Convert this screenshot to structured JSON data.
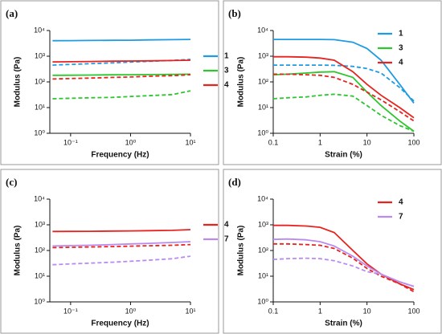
{
  "chart_data": [
    {
      "type": "line",
      "title": "(a)",
      "x_label": "Frequency (Hz)",
      "y_label": "Modulus (Pa)",
      "log_x": true,
      "log_y": true,
      "legend": "outside right",
      "x": [
        0.05,
        0.1,
        0.2,
        0.5,
        1,
        2,
        5,
        10
      ],
      "xlim": [
        0.045,
        10
      ],
      "xticks": [
        {
          "value": 0.1,
          "label": "10⁻¹"
        },
        {
          "value": 1,
          "label": "10⁰"
        },
        {
          "value": 10,
          "label": "10¹"
        }
      ],
      "ylim": [
        1,
        10000
      ],
      "yticks": [
        {
          "value": 1,
          "label": "10⁰"
        },
        {
          "value": 10,
          "label": "10¹"
        },
        {
          "value": 100,
          "label": "10²"
        },
        {
          "value": 1000,
          "label": "10³"
        },
        {
          "value": 10000,
          "label": "10⁴"
        }
      ],
      "series": [
        {
          "name": "1",
          "color": "#1f9be3",
          "values": [
            4000,
            4050,
            4100,
            4150,
            4200,
            4300,
            4400,
            4500
          ]
        },
        {
          "color": "#1f9be3",
          "dash": true,
          "values": [
            450,
            480,
            510,
            550,
            590,
            630,
            690,
            750
          ]
        },
        {
          "name": "3",
          "color": "#2ec52e",
          "values": [
            180,
            182,
            185,
            188,
            190,
            193,
            197,
            200
          ]
        },
        {
          "color": "#2ec52e",
          "dash": true,
          "values": [
            22,
            23,
            24,
            25,
            27,
            29,
            32,
            45
          ]
        },
        {
          "name": "4",
          "color": "#e8231f",
          "values": [
            600,
            610,
            620,
            640,
            650,
            660,
            680,
            700
          ]
        },
        {
          "color": "#e8231f",
          "dash": true,
          "values": [
            130,
            135,
            140,
            150,
            155,
            165,
            175,
            190
          ]
        }
      ]
    },
    {
      "type": "line",
      "title": "(b)",
      "x_label": "Strain (%)",
      "y_label": "Modulus (Pa)",
      "log_x": true,
      "log_y": true,
      "legend": "upper right",
      "x": [
        0.1,
        0.2,
        0.5,
        1,
        2,
        5,
        10,
        20,
        50,
        100
      ],
      "xlim": [
        0.1,
        100
      ],
      "xticks": [
        0.1,
        1,
        10,
        100
      ],
      "ylim": [
        1,
        10000
      ],
      "yticks": [
        {
          "value": 1,
          "label": "10⁰"
        },
        {
          "value": 10,
          "label": "10¹"
        },
        {
          "value": 100,
          "label": "10²"
        },
        {
          "value": 1000,
          "label": "10³"
        },
        {
          "value": 10000,
          "label": "10⁴"
        }
      ],
      "series": [
        {
          "name": "1",
          "color": "#1f9be3",
          "values": [
            4500,
            4500,
            4500,
            4500,
            4400,
            3500,
            2000,
            700,
            80,
            15
          ]
        },
        {
          "color": "#1f9be3",
          "dash": true,
          "values": [
            450,
            450,
            450,
            450,
            440,
            400,
            330,
            220,
            60,
            18
          ]
        },
        {
          "name": "3",
          "color": "#2ec52e",
          "values": [
            190,
            200,
            220,
            240,
            250,
            150,
            40,
            12,
            3,
            1.2
          ]
        },
        {
          "color": "#2ec52e",
          "dash": true,
          "values": [
            22,
            24,
            26,
            30,
            33,
            28,
            12,
            5,
            2,
            1.2
          ]
        },
        {
          "name": "4",
          "color": "#e8231f",
          "values": [
            950,
            950,
            920,
            850,
            700,
            250,
            80,
            30,
            10,
            4
          ]
        },
        {
          "color": "#e8231f",
          "dash": true,
          "values": [
            200,
            200,
            190,
            180,
            150,
            80,
            40,
            20,
            7,
            3
          ]
        }
      ]
    },
    {
      "type": "line",
      "title": "(c)",
      "x_label": "Frequency (Hz)",
      "y_label": "Modulus (Pa)",
      "log_x": true,
      "log_y": true,
      "legend": "outside right",
      "x": [
        0.05,
        0.1,
        0.2,
        0.5,
        1,
        2,
        5,
        10
      ],
      "xlim": [
        0.045,
        10
      ],
      "xticks": [
        {
          "value": 0.1,
          "label": "10⁻¹"
        },
        {
          "value": 1,
          "label": "10⁰"
        },
        {
          "value": 10,
          "label": "10¹"
        }
      ],
      "ylim": [
        1,
        10000
      ],
      "yticks": [
        {
          "value": 1,
          "label": "10⁰"
        },
        {
          "value": 10,
          "label": "10¹"
        },
        {
          "value": 100,
          "label": "10²"
        },
        {
          "value": 1000,
          "label": "10³"
        },
        {
          "value": 10000,
          "label": "10⁴"
        }
      ],
      "series": [
        {
          "name": "4",
          "color": "#e8231f",
          "values": [
            550,
            555,
            560,
            570,
            580,
            590,
            610,
            650
          ]
        },
        {
          "color": "#e8231f",
          "dash": true,
          "values": [
            130,
            133,
            137,
            142,
            147,
            153,
            160,
            170
          ]
        },
        {
          "name": "7",
          "color": "#b98af0",
          "values": [
            150,
            155,
            160,
            170,
            180,
            190,
            205,
            220
          ]
        },
        {
          "color": "#b98af0",
          "dash": true,
          "values": [
            28,
            30,
            32,
            35,
            38,
            42,
            48,
            60
          ]
        }
      ]
    },
    {
      "type": "line",
      "title": "(d)",
      "x_label": "Strain (%)",
      "y_label": "Modulus (Pa)",
      "log_x": true,
      "log_y": true,
      "legend": "upper right",
      "x": [
        0.1,
        0.2,
        0.5,
        1,
        2,
        5,
        10,
        20,
        50,
        100
      ],
      "xlim": [
        0.1,
        100
      ],
      "xticks": [
        0.1,
        1,
        10,
        100
      ],
      "ylim": [
        1,
        10000
      ],
      "yticks": [
        {
          "value": 1,
          "label": "10⁰"
        },
        {
          "value": 10,
          "label": "10¹"
        },
        {
          "value": 100,
          "label": "10²"
        },
        {
          "value": 1000,
          "label": "10³"
        },
        {
          "value": 10000,
          "label": "10⁴"
        }
      ],
      "series": [
        {
          "name": "4",
          "color": "#e8231f",
          "values": [
            950,
            950,
            900,
            800,
            500,
            100,
            30,
            12,
            5,
            3
          ]
        },
        {
          "color": "#e8231f",
          "dash": true,
          "values": [
            180,
            180,
            170,
            160,
            120,
            50,
            20,
            10,
            5,
            2.5
          ]
        },
        {
          "name": "7",
          "color": "#b98af0",
          "values": [
            270,
            280,
            260,
            220,
            150,
            60,
            25,
            12,
            6,
            4
          ]
        },
        {
          "color": "#b98af0",
          "dash": true,
          "values": [
            45,
            48,
            50,
            48,
            40,
            25,
            15,
            12,
            6,
            4
          ]
        }
      ]
    }
  ]
}
